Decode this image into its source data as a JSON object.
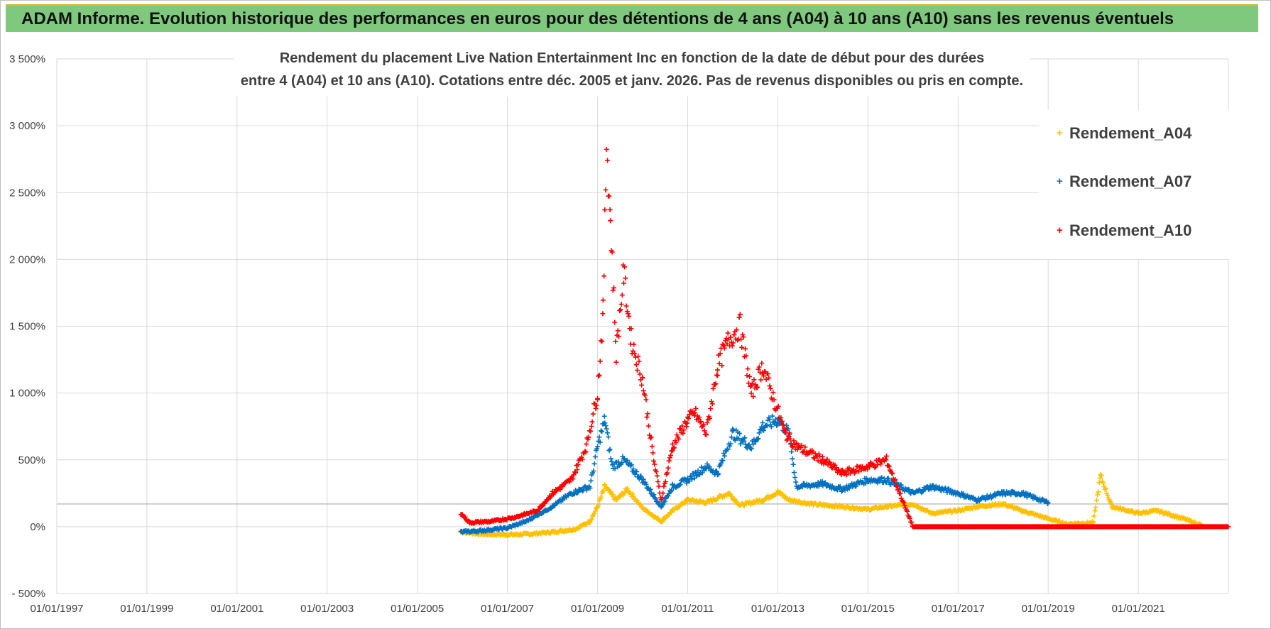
{
  "header": {
    "title": "ADAM Informe. Evolution historique des performances en euros pour des détentions de 4 ans (A04) à 10 ans (A10) sans les revenus éventuels"
  },
  "colors": {
    "header_bg": "#7fc97f",
    "header_accent": "#d9b92a",
    "A04": "#ffc000",
    "A07": "#0070c0",
    "A10": "#ff0000",
    "grid": "#d9d9d9"
  },
  "chart_data": {
    "type": "scatter",
    "title_line1": "Rendement du placement Live Nation Entertainment Inc en fonction de la date de début pour des durées",
    "title_line2": "entre 4 (A04) et 10 ans (A10).  Cotations entre déc. 2005 et janv. 2026. Pas de revenus disponibles ou pris en compte.",
    "marker": "plus",
    "grid": true,
    "legend_position": "top-right",
    "ylim": [
      -500,
      3500
    ],
    "ytick_values": [
      -500,
      0,
      500,
      1000,
      1500,
      2000,
      2500,
      3000,
      3500
    ],
    "ytick_labels": [
      "- 500%",
      "0%",
      "500%",
      "1 000%",
      "1 500%",
      "2 000%",
      "2 500%",
      "3 000%",
      "3 500%"
    ],
    "xlim": [
      "1997-01-01",
      "2023-01-01"
    ],
    "xtick_values": [
      "1997-01-01",
      "1999-01-01",
      "2001-01-01",
      "2003-01-01",
      "2005-01-01",
      "2007-01-01",
      "2009-01-01",
      "2011-01-01",
      "2013-01-01",
      "2015-01-01",
      "2017-01-01",
      "2019-01-01",
      "2021-01-01"
    ],
    "xtick_labels": [
      "01/01/1997",
      "01/01/1999",
      "01/01/2001",
      "01/01/2003",
      "01/01/2005",
      "01/01/2007",
      "01/01/2009",
      "01/01/2011",
      "01/01/2013",
      "01/01/2015",
      "01/01/2017",
      "01/01/2019",
      "01/01/2021"
    ],
    "series": [
      {
        "name": "Rendement_A04",
        "color": "#ffc000",
        "points": [
          [
            "2005-12-20",
            -40
          ],
          [
            "2006-06-01",
            -55
          ],
          [
            "2007-01-01",
            -60
          ],
          [
            "2007-07-01",
            -55
          ],
          [
            "2008-01-01",
            -40
          ],
          [
            "2008-07-01",
            -20
          ],
          [
            "2008-11-01",
            40
          ],
          [
            "2009-01-01",
            150
          ],
          [
            "2009-03-01",
            300
          ],
          [
            "2009-06-01",
            200
          ],
          [
            "2009-09-01",
            280
          ],
          [
            "2010-01-01",
            140
          ],
          [
            "2010-06-01",
            40
          ],
          [
            "2010-09-01",
            120
          ],
          [
            "2011-01-01",
            200
          ],
          [
            "2011-06-01",
            180
          ],
          [
            "2011-12-01",
            250
          ],
          [
            "2012-03-01",
            160
          ],
          [
            "2012-09-01",
            200
          ],
          [
            "2013-01-01",
            260
          ],
          [
            "2013-04-01",
            200
          ],
          [
            "2013-10-01",
            170
          ],
          [
            "2014-06-01",
            150
          ],
          [
            "2015-01-01",
            130
          ],
          [
            "2015-06-01",
            150
          ],
          [
            "2016-01-01",
            170
          ],
          [
            "2016-06-01",
            100
          ],
          [
            "2017-01-01",
            120
          ],
          [
            "2017-06-01",
            150
          ],
          [
            "2018-01-01",
            170
          ],
          [
            "2018-06-01",
            120
          ],
          [
            "2019-01-01",
            60
          ],
          [
            "2019-06-01",
            20
          ],
          [
            "2020-01-01",
            30
          ],
          [
            "2020-03-01",
            380
          ],
          [
            "2020-06-01",
            150
          ],
          [
            "2021-01-01",
            100
          ],
          [
            "2021-06-01",
            120
          ],
          [
            "2022-01-01",
            60
          ],
          [
            "2022-06-01",
            10
          ]
        ]
      },
      {
        "name": "Rendement_A07",
        "color": "#0070c0",
        "points": [
          [
            "2005-12-20",
            -40
          ],
          [
            "2006-06-01",
            -30
          ],
          [
            "2007-01-01",
            -10
          ],
          [
            "2007-06-01",
            40
          ],
          [
            "2008-01-01",
            150
          ],
          [
            "2008-06-01",
            250
          ],
          [
            "2008-11-01",
            300
          ],
          [
            "2009-01-01",
            600
          ],
          [
            "2009-03-01",
            800
          ],
          [
            "2009-05-01",
            450
          ],
          [
            "2009-08-01",
            500
          ],
          [
            "2010-01-01",
            350
          ],
          [
            "2010-06-01",
            150
          ],
          [
            "2010-09-01",
            300
          ],
          [
            "2011-01-01",
            350
          ],
          [
            "2011-06-01",
            450
          ],
          [
            "2011-09-01",
            400
          ],
          [
            "2012-01-01",
            700
          ],
          [
            "2012-06-01",
            600
          ],
          [
            "2012-09-01",
            750
          ],
          [
            "2013-01-01",
            800
          ],
          [
            "2013-04-01",
            700
          ],
          [
            "2013-06-01",
            300
          ],
          [
            "2014-01-01",
            320
          ],
          [
            "2014-06-01",
            280
          ],
          [
            "2015-01-01",
            350
          ],
          [
            "2015-06-01",
            350
          ],
          [
            "2016-01-01",
            250
          ],
          [
            "2016-06-01",
            300
          ],
          [
            "2017-01-01",
            250
          ],
          [
            "2017-06-01",
            200
          ],
          [
            "2018-01-01",
            250
          ],
          [
            "2018-06-01",
            250
          ],
          [
            "2019-01-01",
            180
          ]
        ]
      },
      {
        "name": "Rendement_A10",
        "color": "#ff0000",
        "points": [
          [
            "2005-12-20",
            100
          ],
          [
            "2006-03-01",
            30
          ],
          [
            "2006-09-01",
            40
          ],
          [
            "2007-03-01",
            70
          ],
          [
            "2007-09-01",
            120
          ],
          [
            "2008-01-01",
            250
          ],
          [
            "2008-06-01",
            350
          ],
          [
            "2008-10-01",
            600
          ],
          [
            "2009-01-01",
            1000
          ],
          [
            "2009-02-15",
            1600
          ],
          [
            "2009-03-15",
            2900
          ],
          [
            "2009-04-15",
            2300
          ],
          [
            "2009-06-01",
            1300
          ],
          [
            "2009-08-01",
            1900
          ],
          [
            "2009-10-01",
            1400
          ],
          [
            "2010-01-01",
            1100
          ],
          [
            "2010-04-01",
            500
          ],
          [
            "2010-06-01",
            200
          ],
          [
            "2010-09-01",
            600
          ],
          [
            "2011-01-01",
            800
          ],
          [
            "2011-03-01",
            850
          ],
          [
            "2011-06-01",
            700
          ],
          [
            "2011-09-01",
            1200
          ],
          [
            "2011-12-01",
            1400
          ],
          [
            "2012-03-01",
            1500
          ],
          [
            "2012-06-01",
            1000
          ],
          [
            "2012-09-01",
            1200
          ],
          [
            "2012-12-01",
            950
          ],
          [
            "2013-03-01",
            700
          ],
          [
            "2013-06-01",
            600
          ],
          [
            "2014-01-01",
            500
          ],
          [
            "2014-06-01",
            400
          ],
          [
            "2015-01-01",
            450
          ],
          [
            "2015-06-01",
            500
          ],
          [
            "2016-01-01",
            0
          ],
          [
            "2016-06-01",
            0
          ],
          [
            "2017-01-01",
            0
          ],
          [
            "2018-01-01",
            0
          ],
          [
            "2019-01-01",
            0
          ],
          [
            "2020-01-01",
            0
          ],
          [
            "2021-01-01",
            0
          ],
          [
            "2022-01-01",
            0
          ],
          [
            "2022-12-31",
            0
          ]
        ]
      }
    ]
  }
}
